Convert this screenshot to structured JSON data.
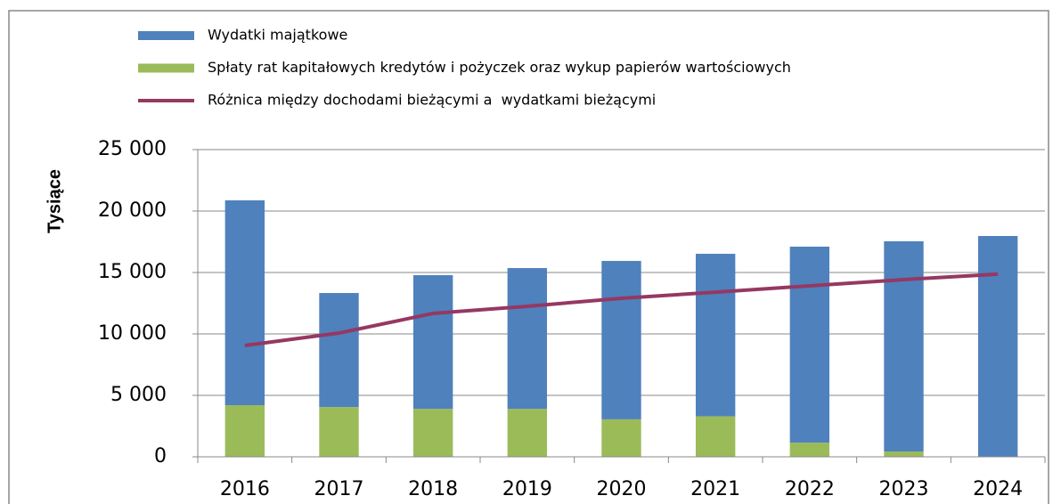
{
  "chart_data": {
    "type": "bar",
    "ylabel": "Tysiące",
    "categories": [
      "2016",
      "2017",
      "2018",
      "2019",
      "2020",
      "2021",
      "2022",
      "2023",
      "2024"
    ],
    "series": [
      {
        "name": "Wydatki majątkowe",
        "color": "#4f81bd",
        "type": "bar",
        "values": [
          16670,
          9280,
          10880,
          11460,
          12890,
          13220,
          15950,
          17110,
          17970
        ]
      },
      {
        "name": "Spłaty rat kapitałowych kredytów i pożyczek oraz wykup papierów wartościowych",
        "color": "#9bbb59",
        "type": "bar",
        "values": [
          4200,
          4050,
          3900,
          3900,
          3050,
          3300,
          1150,
          430,
          0
        ]
      },
      {
        "name": "Różnica między dochodami bieżącymi a  wydatkami bieżącymi",
        "color": "#953862",
        "type": "line",
        "values": [
          9060,
          10070,
          11670,
          12250,
          12900,
          13400,
          13910,
          14420,
          14860
        ]
      }
    ],
    "stacked": true,
    "ylim": [
      0,
      25000
    ],
    "yticks": [
      0,
      {
        "value": 5000,
        "label": "5 000"
      },
      {
        "value": 10000,
        "label": "10 000"
      },
      {
        "value": 15000,
        "label": "15 000"
      },
      {
        "value": 20000,
        "label": "20 000"
      },
      {
        "value": 25000,
        "label": "25 000"
      }
    ],
    "grid": true
  }
}
